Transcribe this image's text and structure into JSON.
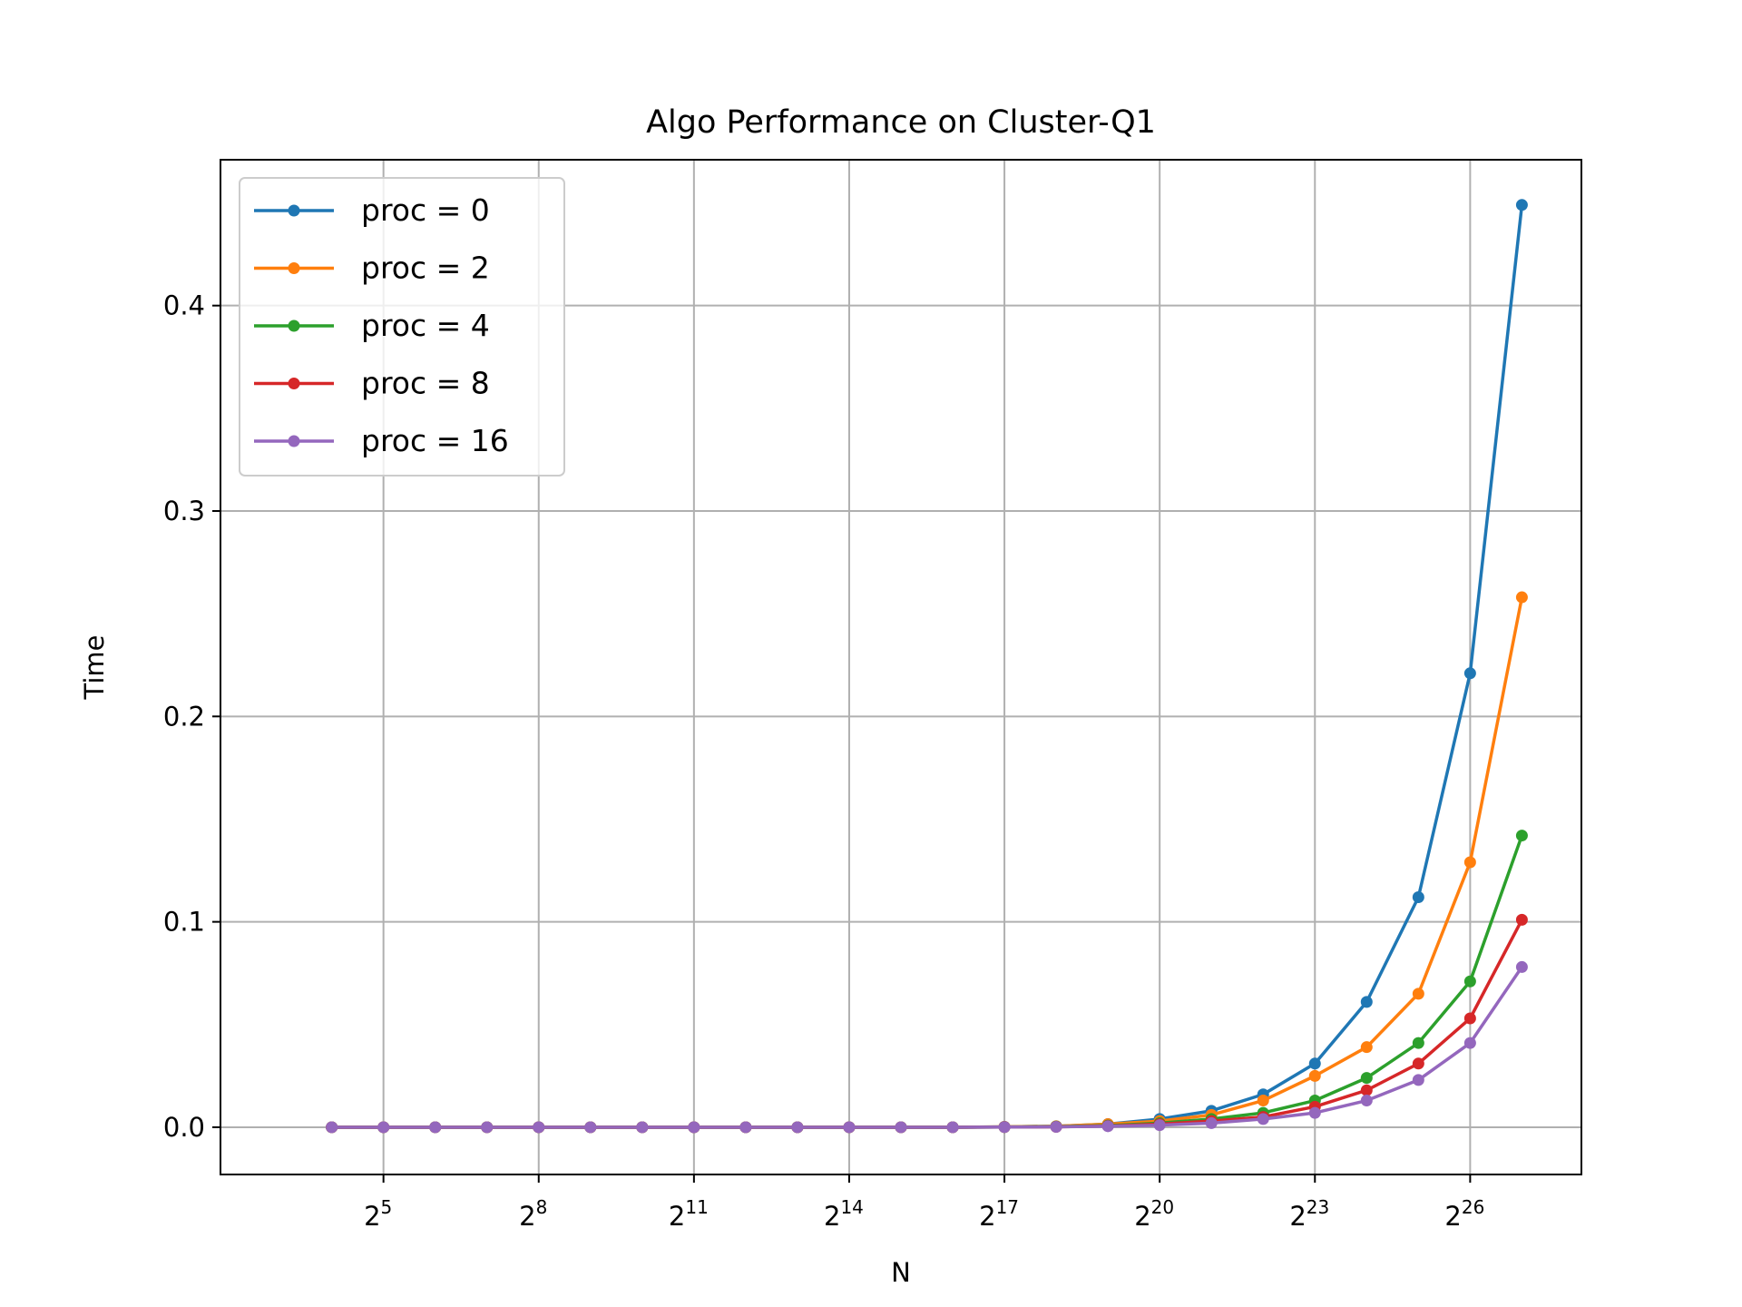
{
  "chart_data": {
    "type": "line",
    "title": "Algo Performance on Cluster-Q1",
    "xlabel": "N",
    "ylabel": "Time",
    "x_scale": "log2",
    "x": [
      16,
      32,
      64,
      128,
      256,
      512,
      1024,
      2048,
      4096,
      8192,
      16384,
      32768,
      65536,
      131072,
      262144,
      524288,
      1048576,
      2097152,
      4194304,
      8388608,
      16777216,
      33554432,
      67108864,
      134217728
    ],
    "x_ticks": [
      {
        "exp": 5,
        "base": "2",
        "sup": "5"
      },
      {
        "exp": 8,
        "base": "2",
        "sup": "8"
      },
      {
        "exp": 11,
        "base": "2",
        "sup": "11"
      },
      {
        "exp": 14,
        "base": "2",
        "sup": "14"
      },
      {
        "exp": 17,
        "base": "2",
        "sup": "17"
      },
      {
        "exp": 20,
        "base": "2",
        "sup": "20"
      },
      {
        "exp": 23,
        "base": "2",
        "sup": "23"
      },
      {
        "exp": 26,
        "base": "2",
        "sup": "26"
      }
    ],
    "xlim_exp": [
      1.85,
      28.15
    ],
    "ylim": [
      -0.023,
      0.471
    ],
    "y_ticks": [
      0.0,
      0.1,
      0.2,
      0.3,
      0.4
    ],
    "y_tick_labels": [
      "0.0",
      "0.1",
      "0.2",
      "0.3",
      "0.4"
    ],
    "grid": true,
    "legend_position": "top-left",
    "series": [
      {
        "name": "proc = 0",
        "color": "#1f77b4",
        "values": [
          0,
          0,
          0,
          0,
          0,
          0,
          0,
          0,
          0,
          0,
          0,
          0,
          0,
          0.0002,
          0.0005,
          0.0015,
          0.004,
          0.008,
          0.016,
          0.031,
          0.061,
          0.112,
          0.221,
          0.449
        ]
      },
      {
        "name": "proc = 2",
        "color": "#ff7f0e",
        "values": [
          0,
          0,
          0,
          0,
          0,
          0,
          0,
          0,
          0,
          0,
          0,
          0,
          0,
          0.0002,
          0.0005,
          0.0015,
          0.003,
          0.006,
          0.013,
          0.025,
          0.039,
          0.065,
          0.129,
          0.258
        ]
      },
      {
        "name": "proc = 4",
        "color": "#2ca02c",
        "values": [
          0,
          0,
          0,
          0,
          0,
          0,
          0,
          0,
          0,
          0,
          0,
          0,
          0,
          0.0001,
          0.0003,
          0.0008,
          0.002,
          0.004,
          0.007,
          0.013,
          0.024,
          0.041,
          0.071,
          0.142
        ]
      },
      {
        "name": "proc = 8",
        "color": "#d62728",
        "values": [
          0,
          0,
          0,
          0,
          0,
          0,
          0,
          0,
          0,
          0,
          0,
          0,
          0,
          0.0001,
          0.0002,
          0.0006,
          0.0015,
          0.003,
          0.005,
          0.01,
          0.018,
          0.031,
          0.053,
          0.101
        ]
      },
      {
        "name": "proc = 16",
        "color": "#9467bd",
        "values": [
          0,
          0,
          0,
          0,
          0,
          0,
          0,
          0,
          0,
          0,
          0,
          0,
          0,
          0.0001,
          0.0002,
          0.0005,
          0.001,
          0.002,
          0.004,
          0.007,
          0.013,
          0.023,
          0.041,
          0.078
        ]
      }
    ]
  }
}
